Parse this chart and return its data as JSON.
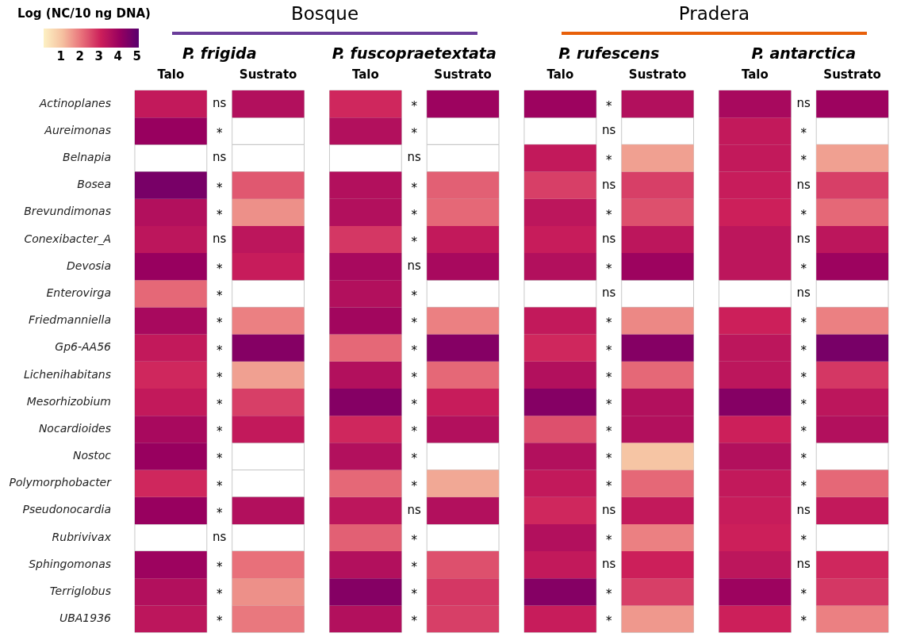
{
  "chart_data": {
    "type": "heatmap",
    "clabel": "Log (NC/10 ng DNA)",
    "clim": [
      0.1,
      5.1
    ],
    "cticks": [
      1,
      2,
      3,
      4,
      5
    ],
    "categories": [
      "Talo",
      "Sustrato",
      "Talo",
      "Sustrato",
      "Talo",
      "Sustrato",
      "Talo",
      "Sustrato"
    ],
    "y_categories": [
      "Actinoplanes",
      "Aureimonas",
      "Belnapia",
      "Bosea",
      "Brevundimonas",
      "Conexibacter_A",
      "Devosia",
      "Enterovirga",
      "Friedmanniella",
      "Gp6-AA56",
      "Lichenihabitans",
      "Mesorhizobium",
      "Nocardioides",
      "Nostoc",
      "Polymorphobacter",
      "Pseudonocardia",
      "Rubrivivax",
      "Sphingomonas",
      "Terriglobus",
      "UBA1936"
    ],
    "cells": [
      [
        3.3,
        3.6,
        3.0,
        4.0,
        4.0,
        3.6,
        3.8,
        4.0
      ],
      [
        4.1,
        null,
        3.6,
        null,
        null,
        null,
        3.3,
        null
      ],
      [
        null,
        null,
        null,
        null,
        3.3,
        1.5,
        3.3,
        1.5
      ],
      [
        4.6,
        2.4,
        3.6,
        2.3,
        2.7,
        2.7,
        3.2,
        2.7
      ],
      [
        3.6,
        1.7,
        3.6,
        2.2,
        3.4,
        2.5,
        3.1,
        2.2
      ],
      [
        3.4,
        3.4,
        2.8,
        3.3,
        3.2,
        3.4,
        3.4,
        3.4
      ],
      [
        4.1,
        3.2,
        3.8,
        3.8,
        3.6,
        4.0,
        3.4,
        4.0
      ],
      [
        2.2,
        null,
        3.6,
        null,
        null,
        null,
        null,
        null
      ],
      [
        3.8,
        1.9,
        3.9,
        1.9,
        3.3,
        1.8,
        3.1,
        1.9
      ],
      [
        3.3,
        4.4,
        2.2,
        4.4,
        3.0,
        4.4,
        3.4,
        4.6
      ],
      [
        3.0,
        1.5,
        3.6,
        2.2,
        3.6,
        2.2,
        3.4,
        2.8
      ],
      [
        3.3,
        2.7,
        4.4,
        3.2,
        4.4,
        3.6,
        4.4,
        3.4
      ],
      [
        3.8,
        3.3,
        3.0,
        3.6,
        2.5,
        3.6,
        3.1,
        3.6
      ],
      [
        4.1,
        null,
        3.6,
        null,
        3.6,
        1.0,
        3.6,
        null
      ],
      [
        3.0,
        null,
        2.2,
        1.4,
        3.3,
        2.2,
        3.3,
        2.2
      ],
      [
        4.1,
        3.6,
        3.4,
        3.6,
        3.0,
        3.3,
        3.2,
        3.3
      ],
      [
        null,
        null,
        2.3,
        null,
        3.6,
        1.9,
        3.1,
        null
      ],
      [
        4.0,
        2.1,
        3.6,
        2.5,
        3.3,
        3.1,
        3.4,
        3.0
      ],
      [
        3.6,
        1.7,
        4.4,
        2.8,
        4.4,
        2.7,
        4.0,
        2.8
      ],
      [
        3.4,
        2.0,
        3.6,
        2.7,
        3.2,
        1.6,
        3.1,
        1.9
      ]
    ],
    "annotations": [
      "Bosque",
      "Pradera",
      "P. frigida",
      "P. fuscopraetextata",
      "P. rufescens",
      "P. antarctica",
      "ns",
      "*",
      "ns",
      "*",
      "*",
      "ns",
      "*",
      "*",
      "*",
      "*",
      "*",
      "*",
      "*",
      "*",
      "*",
      "*",
      "ns",
      "*",
      "*",
      "*",
      "*",
      "*",
      "ns",
      "*",
      "*",
      "*",
      "ns",
      "*",
      "*",
      "*",
      "*",
      "*",
      "*",
      "*",
      "*",
      "ns",
      "*",
      "*",
      "*",
      "*",
      "*",
      "ns",
      "*",
      "ns",
      "*",
      "ns",
      "*",
      "ns",
      "*",
      "*",
      "*",
      "*",
      "*",
      "*",
      "*",
      "ns",
      "*",
      "ns",
      "*",
      "*",
      "ns",
      "*",
      "*",
      "ns",
      "*",
      "ns",
      "*",
      "ns",
      "*",
      "*",
      "*",
      "*",
      "*",
      "*",
      "*",
      "ns",
      "*",
      "ns",
      "*",
      "*"
    ]
  }
}
